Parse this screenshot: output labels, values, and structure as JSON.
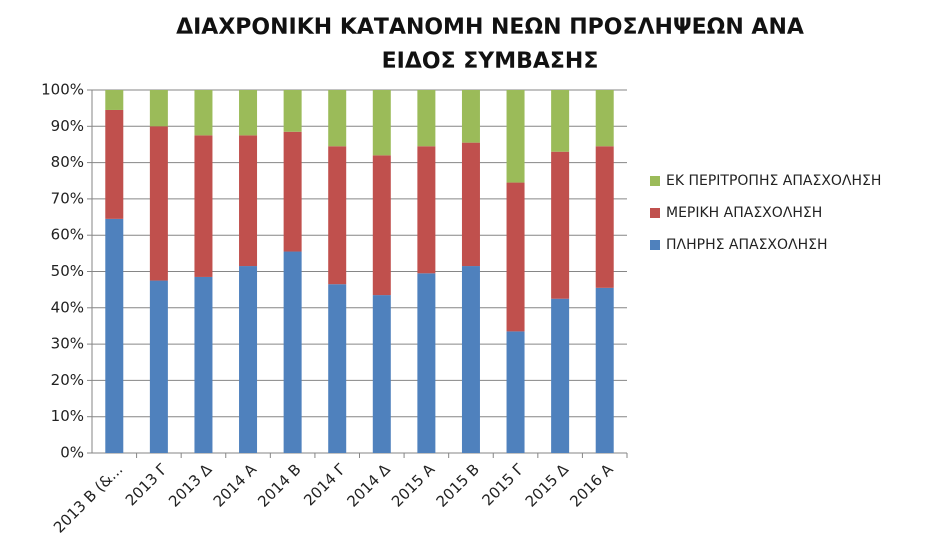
{
  "chart_data": {
    "type": "stacked_bar",
    "title": [
      "ΔΙΑΧΡΟΝΙΚΗ ΚΑΤΑΝΟΜΗ ΝΕΩΝ ΠΡΟΣΛΗΨΕΩΝ ΑΝΑ",
      "ΕΙΔΟΣ ΣΥΜΒΑΣΗΣ"
    ],
    "categories": [
      "2013 Β (&...",
      "2013 Γ",
      "2013 Δ",
      "2014 Α",
      "2014 Β",
      "2014 Γ",
      "2014 Δ",
      "2015 Α",
      "2015 Β",
      "2015 Γ",
      "2015 Δ",
      "2016 Α"
    ],
    "series": [
      {
        "name": "ΠΛΗΡΗΣ ΑΠΑΣΧΟΛΗΣΗ",
        "color": "#4f81bd",
        "values": [
          64.5,
          47.5,
          48.5,
          51.5,
          55.5,
          46.5,
          43.5,
          49.5,
          51.5,
          33.5,
          42.5,
          45.5
        ]
      },
      {
        "name": "ΜΕΡΙΚΗ  ΑΠΑΣΧΟΛΗΣΗ",
        "color": "#c0504d",
        "values": [
          30,
          42.5,
          39,
          36,
          33,
          38,
          38.5,
          35,
          34,
          41,
          40.5,
          39
        ]
      },
      {
        "name": "ΕΚ ΠΕΡΙΤΡΟΠΗΣ ΑΠΑΣΧΟΛΗΣΗ",
        "color": "#9bbb59",
        "values": [
          5.5,
          10,
          12.5,
          12.5,
          11.5,
          15.5,
          18,
          15.5,
          14.5,
          25.5,
          17,
          15.5
        ]
      }
    ],
    "ylim": [
      0,
      100
    ],
    "yticks": [
      {
        "value": 0,
        "label": "0%"
      },
      {
        "value": 10,
        "label": "10%"
      },
      {
        "value": 20,
        "label": "20%"
      },
      {
        "value": 30,
        "label": "30%"
      },
      {
        "value": 40,
        "label": "40%"
      },
      {
        "value": 50,
        "label": "50%"
      },
      {
        "value": 60,
        "label": "60%"
      },
      {
        "value": 70,
        "label": "70%"
      },
      {
        "value": 80,
        "label": "80%"
      },
      {
        "value": 90,
        "label": "90%"
      },
      {
        "value": 100,
        "label": "100%"
      }
    ],
    "grid": true,
    "legend": "right"
  }
}
